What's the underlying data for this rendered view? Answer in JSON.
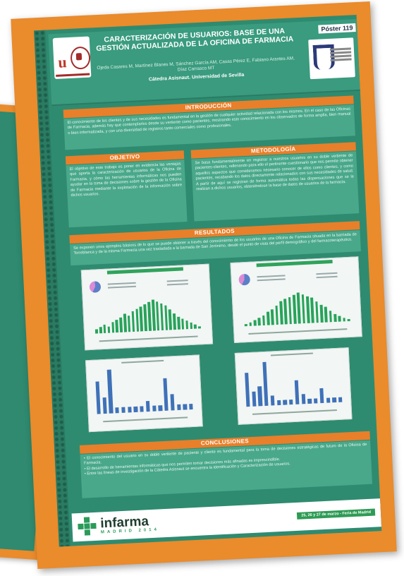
{
  "poster": {
    "title": "CARACTERIZACIÓN DE USUARIOS:  BASE DE UNA GESTIÓN ACTUALIZADA DE LA OFICINA DE FARMACIA",
    "authors": "Ojeda Casares M, Martínez Blanes M, Sánchez García AM, Casas Pérez E, Fabiano Arantes AM, Díaz Carrasco MT",
    "chair": "Cátedra Asisnaut. Universidad de Sevilla",
    "poster_number": "Póster 119",
    "left_logo_label": "Universidad de Sevilla"
  },
  "sections": {
    "introduccion": {
      "heading": "INTRODUCCIÓN",
      "body": "El conocimiento de los clientes y de sus necesidades es fundamental en la gestión de cualquier actividad relacionada con los mismos. En el caso de las Oficinas de Farmacia, además hay que contemplarlos desde su vertiente como pacientes, mostrando esto conocimiento en los observados de forma amplia, bien manual o bien informatizada, y con una diversidad de registros tanto comerciales como profesionales."
    },
    "objetivo": {
      "heading": "OBJETIVO",
      "body": "El objetivo de este trabajo es poner en evidencia las ventajas que aporta la caracterización de usuarios de la Oficina de Farmacia, y cómo las herramientas informáticas nos pueden ayudar en la toma de decisiones sobre la gestión de la Oficina de Farmacia mediante la explotación de la información sobre dichos usuarios."
    },
    "metodologia": {
      "heading": "METODOLOGÍA",
      "body": "Se basa fundamentalmente en registrar a nuestros usuarios en su doble vertiente de pacientes-clientes, rellenando para ello el pertinente cuestionario que nos permite obtener aquellos aspectos que consideramos necesario conocer de ellos como clientes, y como pacientes, recabando los datos directamente relacionados con sus necesidades de salud. A partir de aquí se registran de forma automática todas las dispensaciones que se le realizan a dichos usuarios, obteniéndose la base de datos de usuarios de la farmacia."
    },
    "resultados": {
      "heading": "RESULTADOS",
      "body": "Se exponen unos ejemplos básicos de lo que se puede obtener a través del conocimiento de los usuarios de una Oficina de Farmacia situada en la barriada de Torreblanca y de la misma Farmacia una vez trasladada a la barriada de San Jerónimo, desde el punto de vista del perfil demográfico y del farmacoterapéutico."
    },
    "conclusiones": {
      "heading": "CONCLUSIONES",
      "items": [
        "• El conocimiento del usuario en su doble vertiente de paciente y cliente es fundamental para la toma de decisiones estratégicas de futuro de la Oficina de Farmacia.",
        "• El desarrollo de herramientas informáticas que nos permiten tomar decisiones más afinadas es imprescindible.",
        "• Entre las líneas de investigación de la Cátedra Asisnaut se encuentra la Identificación y Caracterización de usuarios."
      ]
    }
  },
  "footer": {
    "brand": "infarma",
    "brand_sub": "MADRID 2014",
    "dates": "25, 26 y 27 de marzo - Feria de Madrid"
  },
  "chart_data": [
    {
      "type": "bar",
      "values": [
        2,
        3,
        4,
        3,
        5,
        6,
        7,
        9,
        8,
        10,
        11,
        12,
        13,
        14,
        15,
        14,
        13,
        12,
        10,
        8,
        6,
        5,
        4,
        3,
        2,
        1
      ]
    },
    {
      "type": "bar",
      "values": [
        1,
        2,
        3,
        4,
        5,
        7,
        8,
        10,
        12,
        13,
        14,
        15,
        16,
        15,
        14,
        13,
        11,
        9,
        8,
        6,
        4,
        3,
        2,
        1
      ]
    },
    {
      "type": "bar",
      "values": [
        6,
        3,
        8,
        1,
        1,
        1,
        1,
        1,
        2,
        1,
        1,
        6,
        3,
        1,
        1,
        1
      ]
    },
    {
      "type": "bar",
      "values": [
        7,
        3,
        4,
        9,
        2,
        1,
        1,
        1,
        5,
        2,
        1,
        1,
        3,
        1,
        1,
        1
      ]
    }
  ]
}
